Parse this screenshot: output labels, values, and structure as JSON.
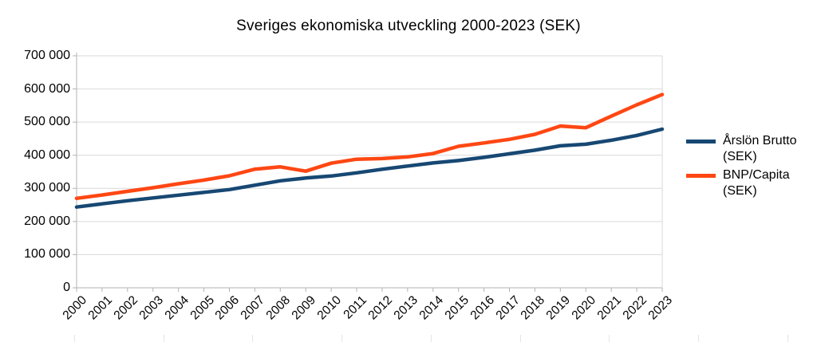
{
  "chart_data": {
    "type": "line",
    "title": "Sveriges ekonomiska utveckling 2000-2023 (SEK)",
    "categories": [
      "2000",
      "2001",
      "2002",
      "2003",
      "2004",
      "2005",
      "2006",
      "2007",
      "2008",
      "2009",
      "2010",
      "2011",
      "2012",
      "2013",
      "2014",
      "2015",
      "2016",
      "2017",
      "2018",
      "2019",
      "2020",
      "2021",
      "2022",
      "2023"
    ],
    "series": [
      {
        "name": "Årslön Brutto (SEK)",
        "color": "#174873",
        "values": [
          243600,
          253200,
          262800,
          271200,
          279600,
          288000,
          296400,
          309600,
          322800,
          331200,
          337200,
          346800,
          357600,
          367200,
          376800,
          384000,
          393600,
          404400,
          415200,
          428400,
          433200,
          445200,
          459600,
          478800
        ]
      },
      {
        "name": "BNP/Capita (SEK)",
        "color": "#ff4713",
        "values": [
          270000,
          280000,
          291000,
          302000,
          314000,
          325000,
          338000,
          358000,
          365000,
          352000,
          376000,
          388000,
          390000,
          395000,
          405000,
          427000,
          437000,
          448000,
          463000,
          488000,
          483000,
          518000,
          552000,
          583000
        ]
      }
    ],
    "ylim": [
      0,
      700000
    ],
    "ytick_step": 100000,
    "ytick_labels": [
      "0",
      "100 000",
      "200 000",
      "300 000",
      "400 000",
      "500 000",
      "600 000",
      "700 000"
    ],
    "xlabel": "",
    "ylabel": "",
    "grid": true,
    "legend_position": "right"
  },
  "legend": {
    "items": [
      {
        "line1": "Årslön Brutto",
        "line2": "(SEK)"
      },
      {
        "line1": "BNP/Capita",
        "line2": "(SEK)"
      }
    ]
  },
  "colors": {
    "gridline": "#d9d9d9",
    "axis": "#b3b3b3",
    "background": "#ffffff"
  }
}
